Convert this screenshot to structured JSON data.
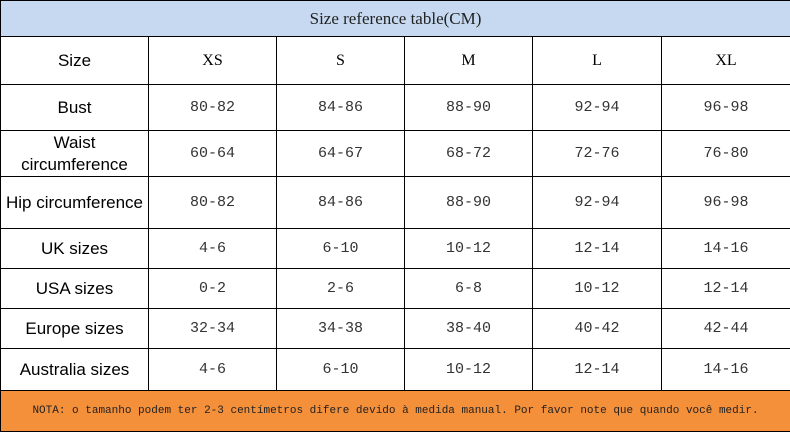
{
  "title": "Size reference table(CM)",
  "table": {
    "header": [
      "Size",
      "XS",
      "S",
      "M",
      "L",
      "XL"
    ],
    "rows": [
      [
        "Bust",
        "80-82",
        "84-86",
        "88-90",
        "92-94",
        "96-98"
      ],
      [
        "Waist circumference",
        "60-64",
        "64-67",
        "68-72",
        "72-76",
        "76-80"
      ],
      [
        "Hip circumference",
        "80-82",
        "84-86",
        "88-90",
        "92-94",
        "96-98"
      ],
      [
        "UK  sizes",
        "4-6",
        "6-10",
        "10-12",
        "12-14",
        "14-16"
      ],
      [
        "USA  sizes",
        "0-2",
        "2-6",
        "6-8",
        "10-12",
        "12-14"
      ],
      [
        "Europe sizes",
        "32-34",
        "34-38",
        "38-40",
        "40-42",
        "42-44"
      ],
      [
        "Australia sizes",
        "4-6",
        "6-10",
        "10-12",
        "12-14",
        "14-16"
      ]
    ]
  },
  "note": "NOTA: o tamanho podem ter 2-3 centímetros difere devido à medida manual. Por favor note que quando você medir."
}
